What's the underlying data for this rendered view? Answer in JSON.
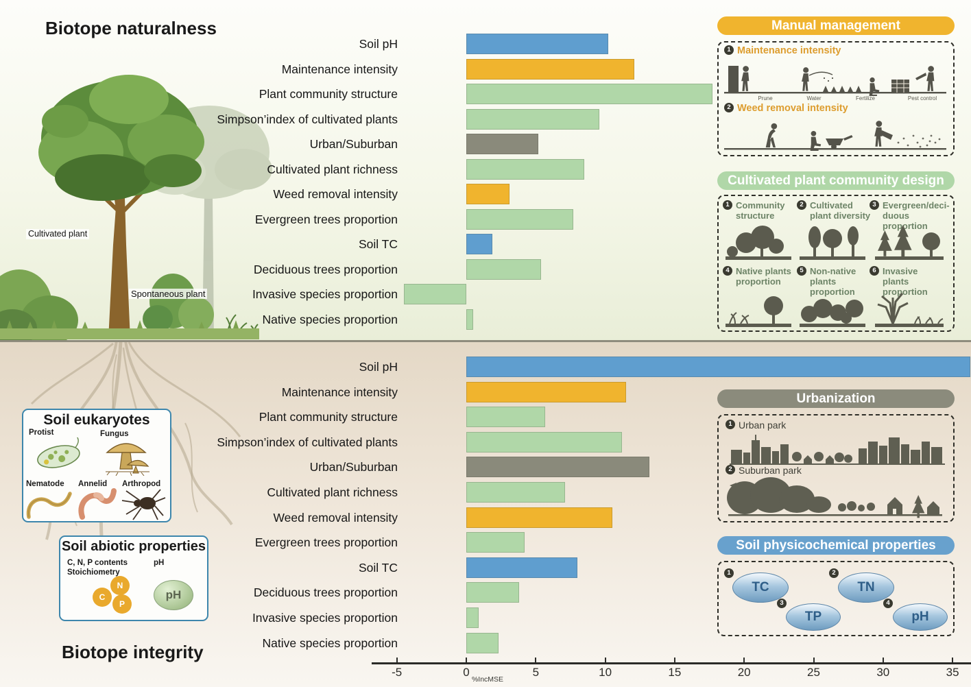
{
  "titles": {
    "top": "Biotope naturalness",
    "bottom": "Biotope integrity"
  },
  "illustration_labels": {
    "cultivated": "Cultivated plant",
    "spontaneous": "Spontaneous plant"
  },
  "axis": {
    "label": "%IncMSE",
    "ticks": [
      -5,
      0,
      5,
      10,
      15,
      20,
      25,
      30,
      35
    ]
  },
  "colors": {
    "blue": "#5f9ecf",
    "orange": "#f0b42e",
    "green": "#b0d7a8",
    "gray": "#8a8a7b"
  },
  "color_legend": {
    "blue": "Soil physicochemical properties",
    "orange": "Manual management",
    "green": "Cultivated plant community design",
    "gray": "Urbanization"
  },
  "chart_data": [
    {
      "type": "bar",
      "title": "Biotope naturalness",
      "orientation": "horizontal",
      "xlabel": "%IncMSE",
      "xlim": [
        -5,
        35
      ],
      "categories": [
        "Soil pH",
        "Maintenance intensity",
        "Plant community structure",
        "Simpson’index of cultivated plants",
        "Urban/Suburban",
        "Cultivated plant richness",
        "Weed removal intensity",
        "Evergreen trees proportion",
        "Soil TC",
        "Deciduous trees proportion",
        "Invasive species proportion",
        "Native species proportion"
      ],
      "values": [
        10.2,
        12.1,
        17.7,
        9.6,
        5.2,
        8.5,
        3.1,
        7.7,
        1.9,
        5.4,
        -4.5,
        0.5
      ],
      "bar_colors": [
        "blue",
        "orange",
        "green",
        "green",
        "gray",
        "green",
        "orange",
        "green",
        "blue",
        "green",
        "green",
        "green"
      ]
    },
    {
      "type": "bar",
      "title": "Biotope integrity",
      "orientation": "horizontal",
      "xlabel": "%IncMSE",
      "xlim": [
        -5,
        35
      ],
      "categories": [
        "Soil pH",
        "Maintenance intensity",
        "Plant community structure",
        "Simpson’index of cultivated plants",
        "Urban/Suburban",
        "Cultivated plant richness",
        "Weed removal intensity",
        "Evergreen trees proportion",
        "Soil TC",
        "Deciduous trees proportion",
        "Invasive species proportion",
        "Native species proportion"
      ],
      "values": [
        36.3,
        11.5,
        5.7,
        11.2,
        13.2,
        7.1,
        10.5,
        4.2,
        8.0,
        3.8,
        0.9,
        2.3
      ],
      "bar_colors": [
        "blue",
        "orange",
        "green",
        "green",
        "gray",
        "green",
        "orange",
        "green",
        "blue",
        "green",
        "green",
        "green"
      ]
    }
  ],
  "panels": [
    {
      "title": "Manual management",
      "color": "#f0b42e",
      "items": [
        {
          "num": "1",
          "label": "Maintenance intensity",
          "captions": [
            "Prune",
            "Water",
            "Fertilize",
            "Pest control"
          ]
        },
        {
          "num": "2",
          "label": "Weed removal intensity"
        }
      ]
    },
    {
      "title": "Cultivated plant community design",
      "color": "#b0d7a8",
      "items": [
        {
          "num": "1",
          "label": "Community structure"
        },
        {
          "num": "2",
          "label": "Cultivated plant diversity"
        },
        {
          "num": "3",
          "label": "Evergreen/deci- duous proportion"
        },
        {
          "num": "4",
          "label": "Native plants proportion"
        },
        {
          "num": "5",
          "label": "Non-native plants proportion"
        },
        {
          "num": "6",
          "label": "Invasive plants proportion"
        }
      ]
    },
    {
      "title": "Urbanization",
      "color": "#8b8b7c",
      "items": [
        {
          "num": "1",
          "label": "Urban park"
        },
        {
          "num": "2",
          "label": "Suburban park"
        }
      ]
    },
    {
      "title": "Soil physicochemical properties",
      "color": "#68a1cd",
      "items": [
        {
          "num": "1",
          "label": "TC"
        },
        {
          "num": "2",
          "label": "TN"
        },
        {
          "num": "3",
          "label": "TP"
        },
        {
          "num": "4",
          "label": "pH"
        }
      ]
    }
  ],
  "boxes": {
    "eukaryotes": {
      "title": "Soil eukaryotes",
      "items": [
        "Protist",
        "Fungus",
        "Nematode",
        "Annelid",
        "Arthropod"
      ]
    },
    "abiotic": {
      "title": "Soil abiotic properties",
      "left_label_line1": "C, N, P contents",
      "left_label_line2": "Stoichiometry",
      "right_label": "pH",
      "circles": [
        "C",
        "N",
        "P"
      ],
      "ellipse_label": "pH"
    }
  }
}
